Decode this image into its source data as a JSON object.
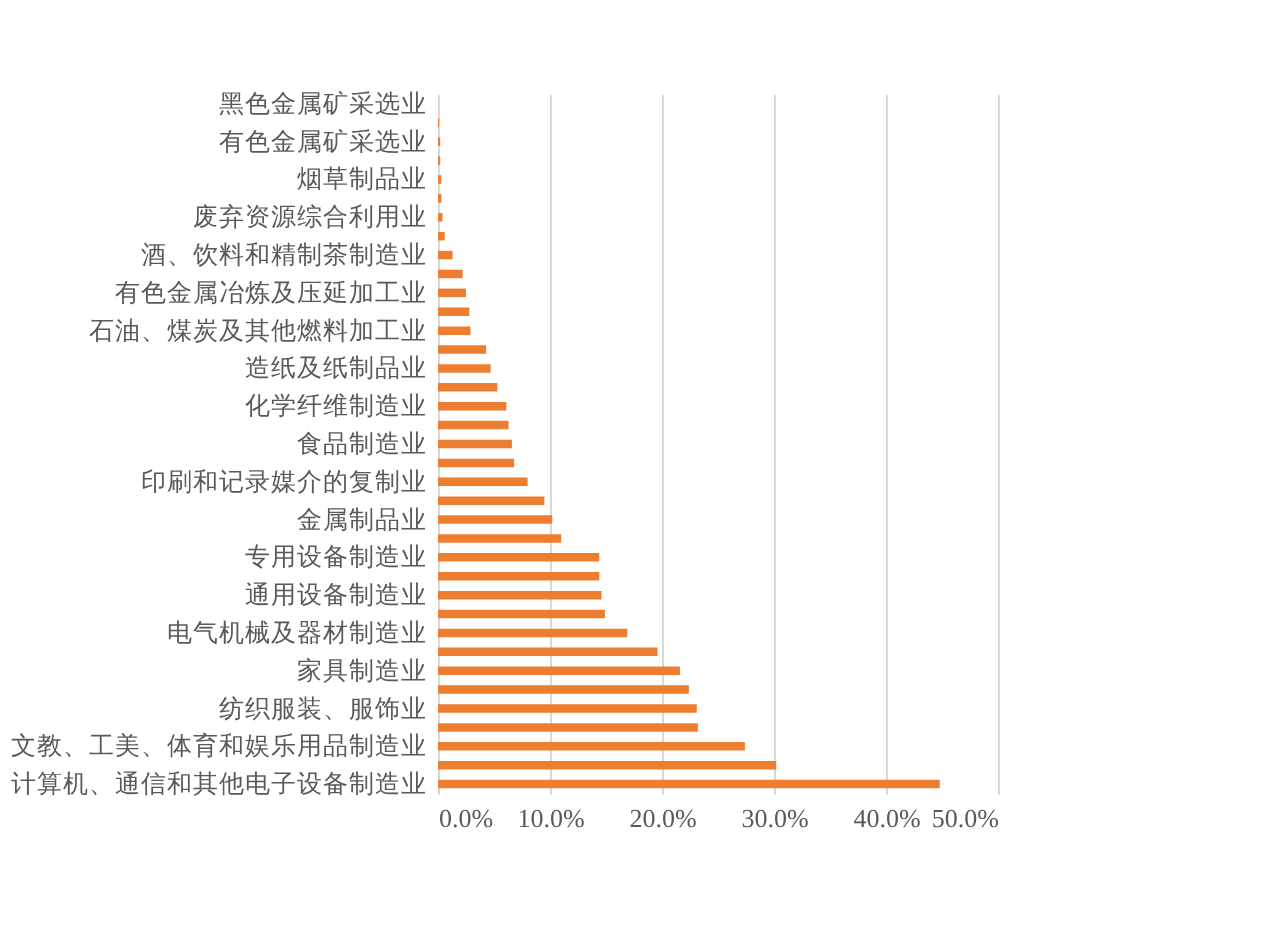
{
  "chart_data": {
    "type": "bar",
    "orientation": "horizontal",
    "categories": [
      "黑色金属矿采选业",
      null,
      "有色金属矿采选业",
      null,
      "烟草制品业",
      null,
      "废弃资源综合利用业",
      null,
      "酒、饮料和精制茶制造业",
      null,
      "有色金属冶炼及压延加工业",
      null,
      "石油、煤炭及其他燃料加工业",
      null,
      "造纸及纸制品业",
      null,
      "化学纤维制造业",
      null,
      "食品制造业",
      null,
      "印刷和记录媒介的复制业",
      null,
      "金属制品业",
      null,
      "专用设备制造业",
      null,
      "通用设备制造业",
      null,
      "电气机械及器材制造业",
      null,
      "家具制造业",
      null,
      "纺织服装、服饰业",
      null,
      "文教、工美、体育和娱乐用品制造业",
      null,
      "计算机、通信和其他电子设备制造业"
    ],
    "values": [
      0.0,
      0.1,
      0.2,
      0.2,
      0.3,
      0.3,
      0.4,
      0.6,
      1.3,
      2.2,
      2.5,
      2.8,
      2.9,
      4.3,
      4.7,
      5.3,
      6.1,
      6.3,
      6.6,
      6.8,
      8.0,
      9.5,
      10.2,
      11.0,
      14.4,
      14.4,
      14.6,
      14.9,
      16.9,
      19.6,
      21.6,
      22.4,
      23.1,
      23.2,
      27.4,
      30.2,
      44.8
    ],
    "color": "#ed7d31",
    "xlim": [
      0,
      50
    ],
    "xticks": [
      {
        "value": 0,
        "label": "0.0%"
      },
      {
        "value": 10,
        "label": "10.0%"
      },
      {
        "value": 20,
        "label": "20.0%"
      },
      {
        "value": 30,
        "label": "30.0%"
      },
      {
        "value": 40,
        "label": "40.0%"
      },
      {
        "value": 50,
        "label": "50.0%"
      }
    ],
    "grid": "x"
  }
}
